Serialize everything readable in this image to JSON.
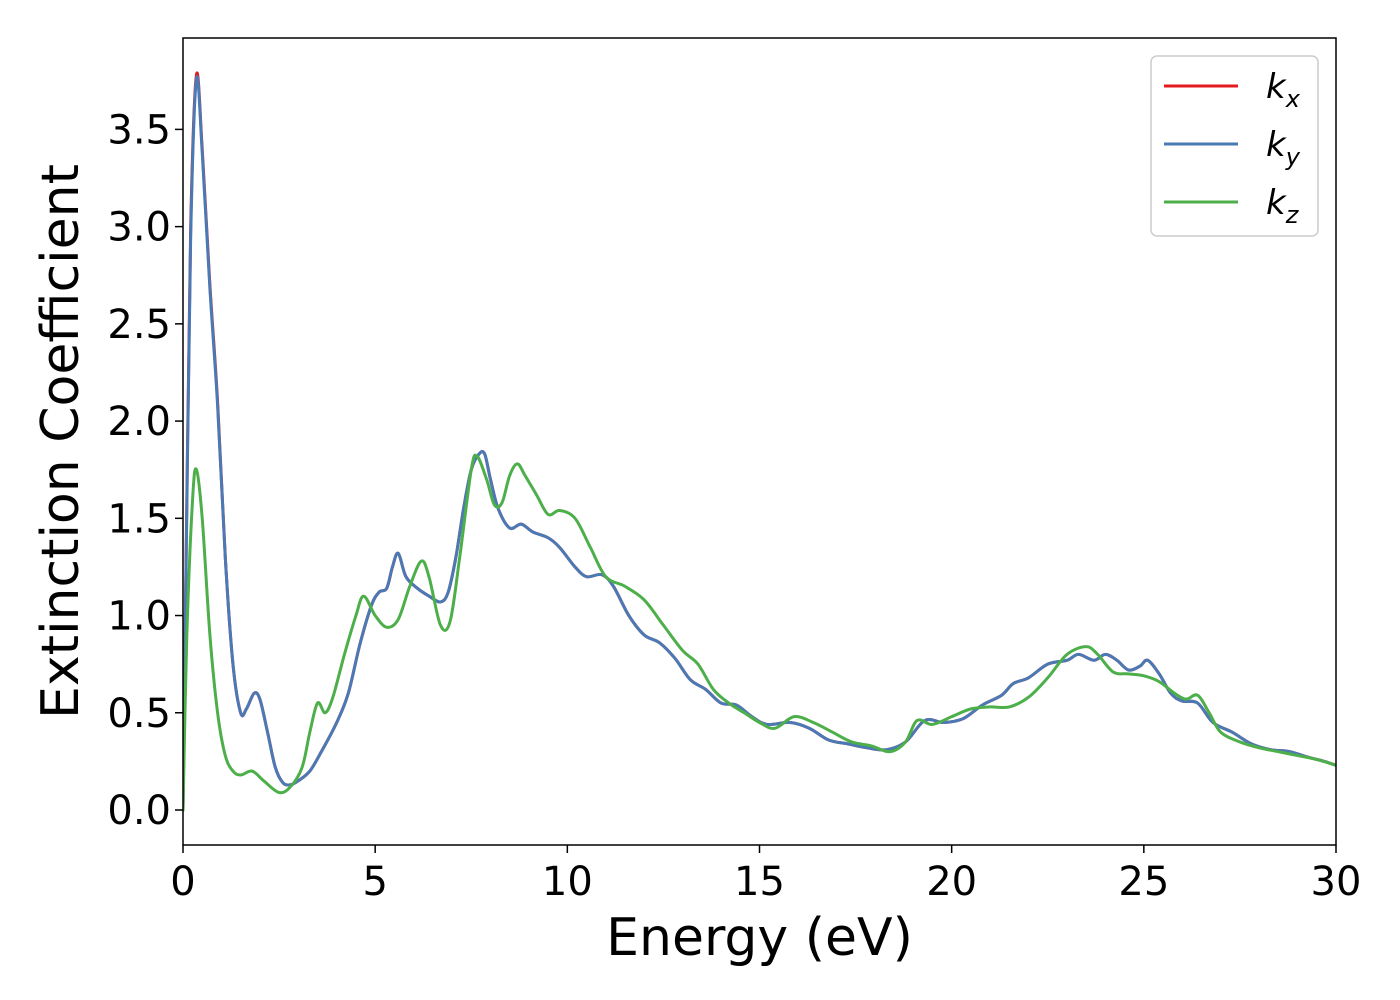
{
  "chart_data": {
    "type": "line",
    "xlabel": "Energy (eV)",
    "ylabel": "Extinction Coefficient",
    "xlim": [
      0,
      30
    ],
    "ylim": [
      -0.18,
      3.97
    ],
    "grid": false,
    "legend_position": "top-right",
    "x_ticks": [
      "0",
      "5",
      "10",
      "15",
      "20",
      "25",
      "30"
    ],
    "y_ticks": [
      "0.0",
      "0.5",
      "1.0",
      "1.5",
      "2.0",
      "2.5",
      "3.0",
      "3.5"
    ],
    "series": [
      {
        "name": "k_x",
        "legend_base": "k",
        "legend_sub": "x",
        "color": "#e41a1c",
        "points": [
          [
            0,
            0
          ],
          [
            0.1,
            1.6
          ],
          [
            0.2,
            3.0
          ],
          [
            0.35,
            3.78
          ],
          [
            0.5,
            3.4
          ],
          [
            0.7,
            2.7
          ],
          [
            0.9,
            2.1
          ],
          [
            1.1,
            1.3
          ],
          [
            1.3,
            0.75
          ],
          [
            1.5,
            0.5
          ],
          [
            1.65,
            0.52
          ],
          [
            1.85,
            0.6
          ],
          [
            2.0,
            0.57
          ],
          [
            2.2,
            0.4
          ],
          [
            2.4,
            0.22
          ],
          [
            2.6,
            0.14
          ],
          [
            2.8,
            0.13
          ],
          [
            3.0,
            0.15
          ],
          [
            3.3,
            0.2
          ],
          [
            3.6,
            0.3
          ],
          [
            4.0,
            0.45
          ],
          [
            4.3,
            0.6
          ],
          [
            4.6,
            0.85
          ],
          [
            4.9,
            1.05
          ],
          [
            5.1,
            1.12
          ],
          [
            5.3,
            1.14
          ],
          [
            5.45,
            1.25
          ],
          [
            5.6,
            1.32
          ],
          [
            5.8,
            1.2
          ],
          [
            6.1,
            1.14
          ],
          [
            6.4,
            1.1
          ],
          [
            6.7,
            1.07
          ],
          [
            6.9,
            1.12
          ],
          [
            7.1,
            1.3
          ],
          [
            7.3,
            1.55
          ],
          [
            7.5,
            1.75
          ],
          [
            7.7,
            1.83
          ],
          [
            7.85,
            1.83
          ],
          [
            8.0,
            1.7
          ],
          [
            8.2,
            1.55
          ],
          [
            8.5,
            1.45
          ],
          [
            8.8,
            1.47
          ],
          [
            9.1,
            1.43
          ],
          [
            9.5,
            1.4
          ],
          [
            9.8,
            1.35
          ],
          [
            10.2,
            1.25
          ],
          [
            10.5,
            1.2
          ],
          [
            10.9,
            1.21
          ],
          [
            11.2,
            1.15
          ],
          [
            11.6,
            1.0
          ],
          [
            12.0,
            0.9
          ],
          [
            12.4,
            0.86
          ],
          [
            12.8,
            0.78
          ],
          [
            13.2,
            0.67
          ],
          [
            13.6,
            0.62
          ],
          [
            14.0,
            0.55
          ],
          [
            14.4,
            0.54
          ],
          [
            14.8,
            0.48
          ],
          [
            15.2,
            0.44
          ],
          [
            15.8,
            0.45
          ],
          [
            16.3,
            0.42
          ],
          [
            16.8,
            0.36
          ],
          [
            17.3,
            0.34
          ],
          [
            17.8,
            0.32
          ],
          [
            18.3,
            0.31
          ],
          [
            18.8,
            0.35
          ],
          [
            19.3,
            0.46
          ],
          [
            19.8,
            0.45
          ],
          [
            20.3,
            0.47
          ],
          [
            20.8,
            0.54
          ],
          [
            21.3,
            0.59
          ],
          [
            21.6,
            0.65
          ],
          [
            22.0,
            0.68
          ],
          [
            22.5,
            0.75
          ],
          [
            23.0,
            0.77
          ],
          [
            23.3,
            0.8
          ],
          [
            23.7,
            0.77
          ],
          [
            24.0,
            0.8
          ],
          [
            24.3,
            0.77
          ],
          [
            24.6,
            0.72
          ],
          [
            24.9,
            0.74
          ],
          [
            25.1,
            0.77
          ],
          [
            25.4,
            0.7
          ],
          [
            25.7,
            0.6
          ],
          [
            26.0,
            0.56
          ],
          [
            26.4,
            0.55
          ],
          [
            26.8,
            0.45
          ],
          [
            27.3,
            0.4
          ],
          [
            27.8,
            0.34
          ],
          [
            28.3,
            0.31
          ],
          [
            28.8,
            0.3
          ],
          [
            29.3,
            0.27
          ],
          [
            29.7,
            0.25
          ],
          [
            30,
            0.23
          ]
        ]
      },
      {
        "name": "k_y",
        "legend_base": "k",
        "legend_sub": "y",
        "color": "#4a7ab5",
        "points": [
          [
            0,
            0
          ],
          [
            0.1,
            1.55
          ],
          [
            0.2,
            2.95
          ],
          [
            0.35,
            3.76
          ],
          [
            0.5,
            3.38
          ],
          [
            0.7,
            2.68
          ],
          [
            0.9,
            2.08
          ],
          [
            1.1,
            1.3
          ],
          [
            1.3,
            0.75
          ],
          [
            1.5,
            0.5
          ],
          [
            1.65,
            0.52
          ],
          [
            1.85,
            0.6
          ],
          [
            2.0,
            0.57
          ],
          [
            2.2,
            0.4
          ],
          [
            2.4,
            0.22
          ],
          [
            2.6,
            0.14
          ],
          [
            2.8,
            0.13
          ],
          [
            3.0,
            0.15
          ],
          [
            3.3,
            0.2
          ],
          [
            3.6,
            0.3
          ],
          [
            4.0,
            0.45
          ],
          [
            4.3,
            0.6
          ],
          [
            4.6,
            0.85
          ],
          [
            4.9,
            1.05
          ],
          [
            5.1,
            1.12
          ],
          [
            5.3,
            1.14
          ],
          [
            5.45,
            1.25
          ],
          [
            5.6,
            1.32
          ],
          [
            5.8,
            1.2
          ],
          [
            6.1,
            1.14
          ],
          [
            6.4,
            1.1
          ],
          [
            6.7,
            1.07
          ],
          [
            6.9,
            1.12
          ],
          [
            7.1,
            1.3
          ],
          [
            7.3,
            1.55
          ],
          [
            7.5,
            1.75
          ],
          [
            7.7,
            1.83
          ],
          [
            7.85,
            1.83
          ],
          [
            8.0,
            1.7
          ],
          [
            8.2,
            1.55
          ],
          [
            8.5,
            1.45
          ],
          [
            8.8,
            1.47
          ],
          [
            9.1,
            1.43
          ],
          [
            9.5,
            1.4
          ],
          [
            9.8,
            1.35
          ],
          [
            10.2,
            1.25
          ],
          [
            10.5,
            1.2
          ],
          [
            10.9,
            1.21
          ],
          [
            11.2,
            1.15
          ],
          [
            11.6,
            1.0
          ],
          [
            12.0,
            0.9
          ],
          [
            12.4,
            0.86
          ],
          [
            12.8,
            0.78
          ],
          [
            13.2,
            0.67
          ],
          [
            13.6,
            0.62
          ],
          [
            14.0,
            0.55
          ],
          [
            14.4,
            0.54
          ],
          [
            14.8,
            0.48
          ],
          [
            15.2,
            0.44
          ],
          [
            15.8,
            0.45
          ],
          [
            16.3,
            0.42
          ],
          [
            16.8,
            0.36
          ],
          [
            17.3,
            0.34
          ],
          [
            17.8,
            0.32
          ],
          [
            18.3,
            0.31
          ],
          [
            18.8,
            0.35
          ],
          [
            19.3,
            0.46
          ],
          [
            19.8,
            0.45
          ],
          [
            20.3,
            0.47
          ],
          [
            20.8,
            0.54
          ],
          [
            21.3,
            0.59
          ],
          [
            21.6,
            0.65
          ],
          [
            22.0,
            0.68
          ],
          [
            22.5,
            0.75
          ],
          [
            23.0,
            0.77
          ],
          [
            23.3,
            0.8
          ],
          [
            23.7,
            0.77
          ],
          [
            24.0,
            0.8
          ],
          [
            24.3,
            0.77
          ],
          [
            24.6,
            0.72
          ],
          [
            24.9,
            0.74
          ],
          [
            25.1,
            0.77
          ],
          [
            25.4,
            0.7
          ],
          [
            25.7,
            0.6
          ],
          [
            26.0,
            0.56
          ],
          [
            26.4,
            0.55
          ],
          [
            26.8,
            0.45
          ],
          [
            27.3,
            0.4
          ],
          [
            27.8,
            0.34
          ],
          [
            28.3,
            0.31
          ],
          [
            28.8,
            0.3
          ],
          [
            29.3,
            0.27
          ],
          [
            29.7,
            0.25
          ],
          [
            30,
            0.23
          ]
        ]
      },
      {
        "name": "k_z",
        "legend_base": "k",
        "legend_sub": "z",
        "color": "#4daf4a",
        "points": [
          [
            0,
            0
          ],
          [
            0.1,
            0.9
          ],
          [
            0.25,
            1.6
          ],
          [
            0.35,
            1.75
          ],
          [
            0.5,
            1.5
          ],
          [
            0.7,
            0.9
          ],
          [
            0.9,
            0.5
          ],
          [
            1.1,
            0.28
          ],
          [
            1.3,
            0.2
          ],
          [
            1.5,
            0.18
          ],
          [
            1.8,
            0.2
          ],
          [
            2.1,
            0.15
          ],
          [
            2.5,
            0.09
          ],
          [
            2.8,
            0.12
          ],
          [
            3.1,
            0.22
          ],
          [
            3.3,
            0.4
          ],
          [
            3.5,
            0.55
          ],
          [
            3.7,
            0.5
          ],
          [
            3.9,
            0.58
          ],
          [
            4.2,
            0.8
          ],
          [
            4.5,
            1.0
          ],
          [
            4.7,
            1.1
          ],
          [
            5.0,
            1.0
          ],
          [
            5.3,
            0.94
          ],
          [
            5.6,
            0.98
          ],
          [
            5.9,
            1.15
          ],
          [
            6.2,
            1.28
          ],
          [
            6.4,
            1.2
          ],
          [
            6.7,
            0.95
          ],
          [
            6.95,
            0.97
          ],
          [
            7.2,
            1.3
          ],
          [
            7.5,
            1.75
          ],
          [
            7.65,
            1.82
          ],
          [
            7.9,
            1.7
          ],
          [
            8.1,
            1.57
          ],
          [
            8.3,
            1.58
          ],
          [
            8.5,
            1.72
          ],
          [
            8.7,
            1.78
          ],
          [
            8.9,
            1.72
          ],
          [
            9.2,
            1.62
          ],
          [
            9.5,
            1.52
          ],
          [
            9.8,
            1.54
          ],
          [
            10.2,
            1.5
          ],
          [
            10.6,
            1.35
          ],
          [
            11.0,
            1.2
          ],
          [
            11.5,
            1.15
          ],
          [
            12.0,
            1.08
          ],
          [
            12.5,
            0.95
          ],
          [
            13.0,
            0.82
          ],
          [
            13.4,
            0.75
          ],
          [
            13.8,
            0.62
          ],
          [
            14.2,
            0.55
          ],
          [
            14.6,
            0.5
          ],
          [
            15.0,
            0.45
          ],
          [
            15.4,
            0.42
          ],
          [
            15.9,
            0.48
          ],
          [
            16.4,
            0.45
          ],
          [
            16.9,
            0.4
          ],
          [
            17.4,
            0.35
          ],
          [
            17.9,
            0.33
          ],
          [
            18.4,
            0.3
          ],
          [
            18.8,
            0.35
          ],
          [
            19.1,
            0.46
          ],
          [
            19.5,
            0.44
          ],
          [
            20.0,
            0.48
          ],
          [
            20.5,
            0.52
          ],
          [
            21.0,
            0.53
          ],
          [
            21.5,
            0.53
          ],
          [
            22.0,
            0.58
          ],
          [
            22.5,
            0.68
          ],
          [
            23.0,
            0.8
          ],
          [
            23.5,
            0.84
          ],
          [
            23.8,
            0.8
          ],
          [
            24.2,
            0.71
          ],
          [
            24.6,
            0.7
          ],
          [
            25.0,
            0.69
          ],
          [
            25.4,
            0.66
          ],
          [
            25.8,
            0.6
          ],
          [
            26.1,
            0.57
          ],
          [
            26.4,
            0.59
          ],
          [
            26.7,
            0.5
          ],
          [
            27.0,
            0.4
          ],
          [
            27.5,
            0.35
          ],
          [
            28.0,
            0.32
          ],
          [
            28.5,
            0.3
          ],
          [
            29.0,
            0.28
          ],
          [
            29.5,
            0.26
          ],
          [
            30,
            0.23
          ]
        ]
      }
    ]
  }
}
